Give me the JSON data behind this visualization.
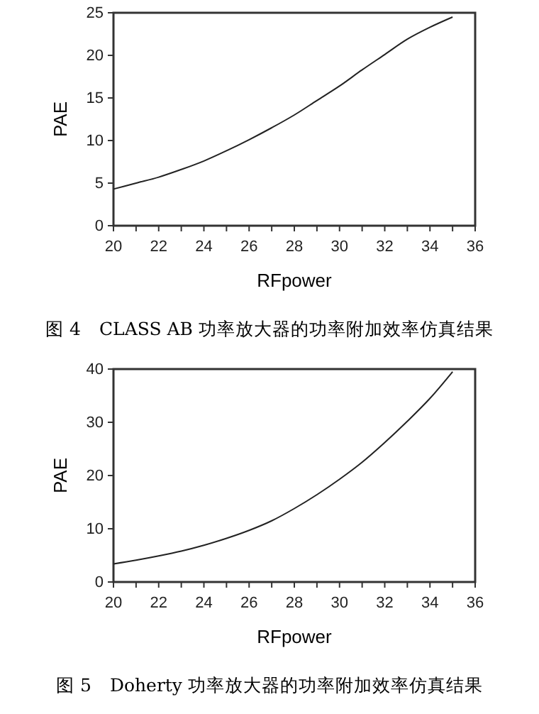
{
  "chart_data": [
    {
      "type": "line",
      "title": "图 4　CLASS AB 功率放大器的功率附加效率仿真结果",
      "xlabel": "RFpower",
      "ylabel": "PAE",
      "x": [
        20,
        21,
        22,
        23,
        24,
        25,
        26,
        27,
        28,
        29,
        30,
        31,
        32,
        33,
        34,
        35
      ],
      "series": [
        {
          "color": "#222222",
          "values": [
            4.3,
            5.0,
            5.7,
            6.6,
            7.6,
            8.8,
            10.1,
            11.5,
            13.0,
            14.7,
            16.4,
            18.3,
            20.1,
            21.9,
            23.3,
            24.5
          ]
        }
      ],
      "xlim": [
        20,
        36
      ],
      "xticks": [
        20,
        {
          "value": 21,
          "label": null
        },
        22,
        {
          "value": 23,
          "label": null
        },
        24,
        {
          "value": 25,
          "label": null
        },
        26,
        {
          "value": 27,
          "label": null
        },
        28,
        {
          "value": 29,
          "label": null
        },
        30,
        {
          "value": 31,
          "label": null
        },
        32,
        {
          "value": 33,
          "label": null
        },
        34,
        {
          "value": 35,
          "label": null
        },
        36
      ],
      "ylim": [
        0,
        25
      ],
      "yticks": [
        0,
        5,
        10,
        15,
        20,
        25
      ],
      "grid": false,
      "marker": "none",
      "line_style": "solid"
    },
    {
      "type": "line",
      "title": "图 5　Doherty 功率放大器的功率附加效率仿真结果",
      "xlabel": "RFpower",
      "ylabel": "PAE",
      "x": [
        20,
        21,
        22,
        23,
        24,
        25,
        26,
        27,
        28,
        29,
        30,
        31,
        32,
        33,
        34,
        35
      ],
      "series": [
        {
          "color": "#222222",
          "values": [
            3.4,
            4.1,
            4.9,
            5.8,
            6.9,
            8.2,
            9.7,
            11.5,
            13.8,
            16.4,
            19.3,
            22.5,
            26.2,
            30.2,
            34.5,
            39.5
          ]
        }
      ],
      "xlim": [
        20,
        36
      ],
      "xticks": [
        20,
        {
          "value": 21,
          "label": null
        },
        22,
        {
          "value": 23,
          "label": null
        },
        24,
        {
          "value": 25,
          "label": null
        },
        26,
        {
          "value": 27,
          "label": null
        },
        28,
        {
          "value": 29,
          "label": null
        },
        30,
        {
          "value": 31,
          "label": null
        },
        32,
        {
          "value": 33,
          "label": null
        },
        34,
        {
          "value": 35,
          "label": null
        },
        36
      ],
      "ylim": [
        0,
        40
      ],
      "yticks": [
        0,
        10,
        20,
        30,
        40
      ],
      "grid": false,
      "marker": "none",
      "line_style": "solid"
    }
  ]
}
